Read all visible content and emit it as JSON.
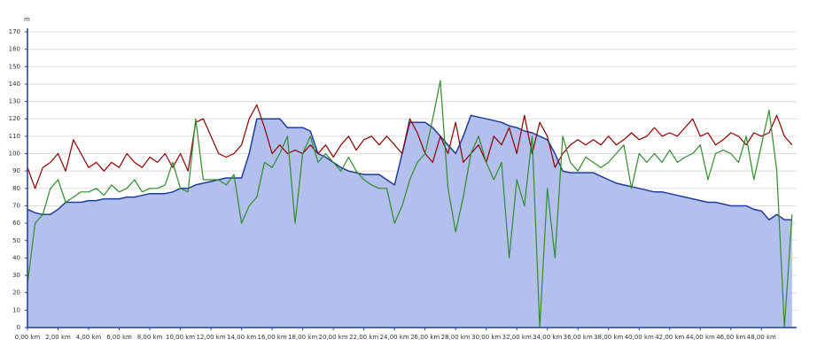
{
  "chart_data": {
    "type": "area-line",
    "y_unit": "m",
    "x": [
      0,
      0.5,
      1,
      1.5,
      2,
      2.5,
      3,
      3.5,
      4,
      4.5,
      5,
      5.5,
      6,
      6.5,
      7,
      7.5,
      8,
      8.5,
      9,
      9.5,
      10,
      10.5,
      11,
      11.5,
      12,
      12.5,
      13,
      13.5,
      14,
      14.5,
      15,
      15.5,
      16,
      16.5,
      17,
      17.5,
      18,
      18.5,
      19,
      19.5,
      20,
      20.5,
      21,
      21.5,
      22,
      22.5,
      23,
      23.5,
      24,
      24.5,
      25,
      25.5,
      26,
      26.5,
      27,
      27.5,
      28,
      28.5,
      29,
      29.5,
      30,
      30.5,
      31,
      31.5,
      32,
      32.5,
      33,
      33.5,
      34,
      34.5,
      35,
      35.5,
      36,
      36.5,
      37,
      37.5,
      38,
      38.5,
      39,
      39.5,
      40,
      40.5,
      41,
      41.5,
      42,
      42.5,
      43,
      43.5,
      44,
      44.5,
      45,
      45.5,
      46,
      46.5,
      47,
      47.5,
      48,
      48.5,
      49,
      49.5,
      50
    ],
    "series": [
      {
        "kind": "area",
        "color": "#1f3d99",
        "fill": "#b3c0ee",
        "values": [
          68,
          66,
          65,
          65,
          68,
          72,
          72,
          72,
          73,
          73,
          74,
          74,
          74,
          75,
          75,
          76,
          77,
          77,
          77,
          78,
          80,
          80,
          82,
          83,
          84,
          85,
          86,
          86,
          86,
          100,
          120,
          120,
          120,
          120,
          115,
          115,
          115,
          113,
          100,
          98,
          95,
          92,
          90,
          89,
          88,
          88,
          88,
          85,
          82,
          100,
          118,
          118,
          118,
          115,
          110,
          105,
          100,
          110,
          122,
          121,
          120,
          119,
          118,
          116,
          115,
          113,
          112,
          110,
          108,
          100,
          90,
          89,
          89,
          89,
          89,
          87,
          85,
          83,
          82,
          81,
          80,
          79,
          78,
          78,
          77,
          76,
          75,
          74,
          73,
          72,
          72,
          71,
          70,
          70,
          70,
          68,
          67,
          62,
          65,
          62,
          62
        ]
      },
      {
        "kind": "line",
        "color": "#8b0000",
        "values": [
          92,
          80,
          92,
          95,
          100,
          90,
          108,
          100,
          92,
          95,
          90,
          95,
          92,
          100,
          95,
          92,
          98,
          95,
          100,
          92,
          100,
          90,
          118,
          120,
          110,
          100,
          98,
          100,
          105,
          120,
          128,
          115,
          100,
          105,
          100,
          102,
          100,
          105,
          100,
          105,
          98,
          105,
          110,
          102,
          108,
          110,
          105,
          110,
          105,
          100,
          120,
          112,
          100,
          95,
          110,
          100,
          118,
          95,
          100,
          105,
          95,
          110,
          105,
          115,
          100,
          122,
          100,
          118,
          110,
          92,
          100,
          105,
          108,
          105,
          108,
          105,
          110,
          105,
          108,
          112,
          108,
          110,
          115,
          110,
          112,
          110,
          115,
          120,
          110,
          112,
          105,
          108,
          112,
          110,
          105,
          112,
          110,
          112,
          122,
          110,
          105
        ]
      },
      {
        "kind": "line",
        "color": "#2e8b2e",
        "values": [
          25,
          60,
          65,
          80,
          85,
          72,
          75,
          78,
          78,
          80,
          76,
          82,
          78,
          80,
          85,
          78,
          80,
          80,
          82,
          95,
          80,
          78,
          120,
          85,
          85,
          85,
          82,
          88,
          60,
          70,
          75,
          95,
          92,
          100,
          110,
          60,
          100,
          110,
          95,
          100,
          95,
          90,
          98,
          90,
          85,
          82,
          80,
          80,
          60,
          70,
          85,
          95,
          100,
          120,
          142,
          80,
          55,
          75,
          100,
          110,
          95,
          85,
          95,
          40,
          85,
          70,
          110,
          0,
          80,
          40,
          110,
          95,
          90,
          98,
          95,
          92,
          95,
          100,
          105,
          80,
          100,
          95,
          100,
          95,
          102,
          95,
          98,
          100,
          105,
          85,
          100,
          102,
          100,
          95,
          110,
          85,
          105,
          125,
          90,
          0,
          65
        ]
      }
    ],
    "xlim": [
      0,
      50.3
    ],
    "xticks": [
      {
        "value": 0,
        "label": "0,00 km"
      },
      {
        "value": 2,
        "label": "2,00 km"
      },
      {
        "value": 4,
        "label": "4,00 km"
      },
      {
        "value": 6,
        "label": "6,00 km"
      },
      {
        "value": 8,
        "label": "8,00 km"
      },
      {
        "value": 10,
        "label": "10,00 km"
      },
      {
        "value": 12,
        "label": "12,00 km"
      },
      {
        "value": 14,
        "label": "14,00 km"
      },
      {
        "value": 16,
        "label": "16,00 km"
      },
      {
        "value": 18,
        "label": "18,00 km"
      },
      {
        "value": 20,
        "label": "20,00 km"
      },
      {
        "value": 22,
        "label": "22,00 km"
      },
      {
        "value": 24,
        "label": "24,00 km"
      },
      {
        "value": 26,
        "label": "26,00 km"
      },
      {
        "value": 28,
        "label": "28,00 km"
      },
      {
        "value": 30,
        "label": "30,00 km"
      },
      {
        "value": 32,
        "label": "32,00 km"
      },
      {
        "value": 34,
        "label": "34,00 km"
      },
      {
        "value": 36,
        "label": "36,00 km"
      },
      {
        "value": 38,
        "label": "38,00 km"
      },
      {
        "value": 40,
        "label": "40,00 km"
      },
      {
        "value": 42,
        "label": "42,00 km"
      },
      {
        "value": 44,
        "label": "44,00 km"
      },
      {
        "value": 46,
        "label": "46,00 km"
      },
      {
        "value": 48,
        "label": "48,00 km"
      }
    ],
    "ylim": [
      0,
      170
    ],
    "yticks": [
      0,
      10,
      20,
      30,
      40,
      50,
      60,
      70,
      80,
      90,
      100,
      110,
      120,
      130,
      140,
      150,
      160,
      170
    ],
    "grid": true
  }
}
